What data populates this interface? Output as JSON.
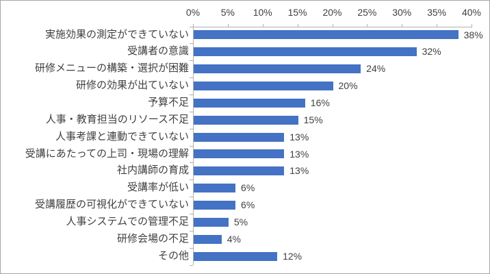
{
  "chart_data": {
    "type": "bar",
    "orientation": "horizontal",
    "title": "",
    "xlabel": "",
    "ylabel": "",
    "xlim": [
      0,
      40
    ],
    "grid": false,
    "legend_position": "none",
    "bar_color": "#4472C4",
    "axis_color": "#AFAFAF",
    "text_color": "#404040",
    "x_ticks": [
      "0%",
      "5%",
      "10%",
      "15%",
      "20%",
      "25%",
      "30%",
      "35%",
      "40%"
    ],
    "x_tick_values": [
      0,
      5,
      10,
      15,
      20,
      25,
      30,
      35,
      40
    ],
    "categories": [
      "実施効果の測定ができていない",
      "受講者の意識",
      "研修メニューの構築・選択が困難",
      "研修の効果が出ていない",
      "予算不足",
      "人事・教育担当のリソース不足",
      "人事考課と連動できていない",
      "受講にあたっての上司・現場の理解",
      "社内講師の育成",
      "受講率が低い",
      "受講履歴の可視化ができていない",
      "人事システムでの管理不足",
      "研修会場の不足",
      "その他"
    ],
    "values": [
      38,
      32,
      24,
      20,
      16,
      15,
      13,
      13,
      13,
      6,
      6,
      5,
      4,
      12
    ],
    "data_labels": [
      "38%",
      "32%",
      "24%",
      "20%",
      "16%",
      "15%",
      "13%",
      "13%",
      "13%",
      "6%",
      "6%",
      "5%",
      "4%",
      "12%"
    ]
  }
}
